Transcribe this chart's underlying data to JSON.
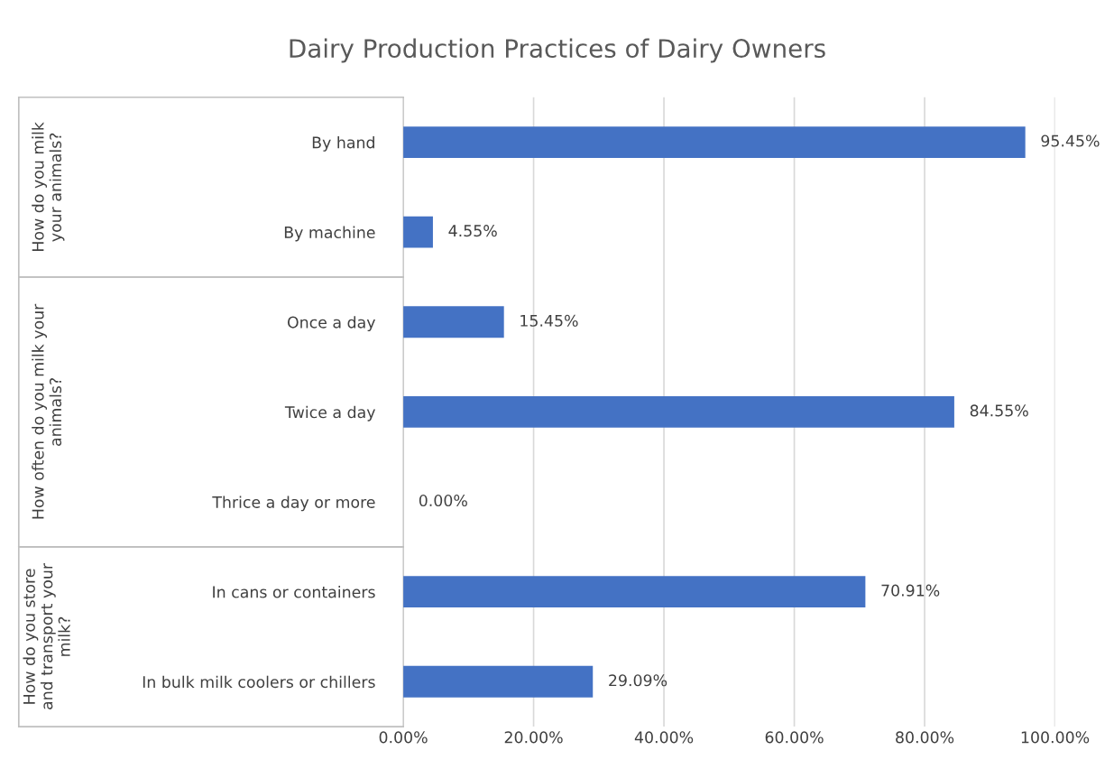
{
  "chart_data": {
    "type": "bar",
    "orientation": "horizontal",
    "title": "Dairy Production Practices of Dairy Owners",
    "categories": [
      "By hand",
      "By machine",
      "Once a day",
      "Twice a day",
      "Thrice a day or more",
      "In cans or containers",
      "In bulk milk coolers or chillers"
    ],
    "values": [
      95.45,
      4.55,
      15.45,
      84.55,
      0.0,
      70.91,
      29.09
    ],
    "value_labels": [
      "95.45%",
      "4.55%",
      "15.45%",
      "84.55%",
      "0.00%",
      "70.91%",
      "29.09%"
    ],
    "color": "#4472c4",
    "xlim": [
      0,
      100
    ],
    "xticks": [
      {
        "value": 0,
        "label": "0.00%"
      },
      {
        "value": 20,
        "label": "20.00%"
      },
      {
        "value": 40,
        "label": "40.00%"
      },
      {
        "value": 60,
        "label": "60.00%"
      },
      {
        "value": 80,
        "label": "80.00%"
      },
      {
        "value": 100,
        "label": "100.00%"
      }
    ],
    "grid": "x",
    "annotations": [
      "How do you milk your animals?",
      "How often do you milk your animals?",
      "How do you store and transport your milk?"
    ]
  }
}
